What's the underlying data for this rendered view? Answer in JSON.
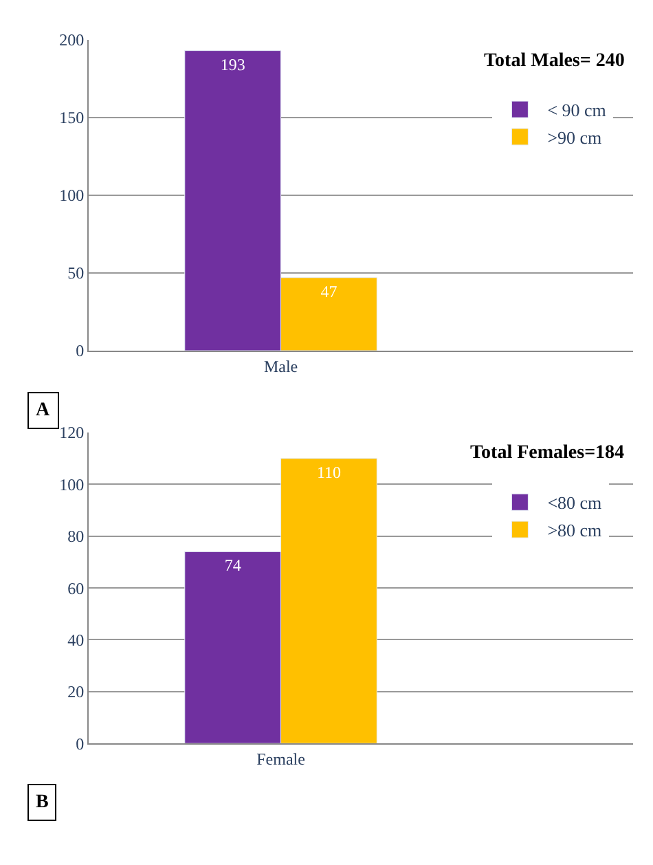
{
  "chart_data": [
    {
      "type": "bar",
      "title": "Total Males= 240",
      "categories": [
        "Male"
      ],
      "series": [
        {
          "name": "< 90 cm",
          "color": "#7030a0",
          "values": [
            193
          ]
        },
        {
          "name": ">90 cm",
          "color": "#ffc000",
          "values": [
            47
          ]
        }
      ],
      "ylim": [
        0,
        200
      ],
      "yticks": [
        0,
        50,
        100,
        150,
        200
      ],
      "grid": "y",
      "legend": "right",
      "data_labels": true,
      "annotations": [
        "A"
      ]
    },
    {
      "type": "bar",
      "title": "Total Females=184",
      "categories": [
        "Female"
      ],
      "series": [
        {
          "name": "<80 cm",
          "color": "#7030a0",
          "values": [
            74
          ]
        },
        {
          "name": ">80 cm",
          "color": "#ffc000",
          "values": [
            110
          ]
        }
      ],
      "ylim": [
        0,
        120
      ],
      "yticks": [
        0,
        20,
        40,
        60,
        80,
        100,
        120
      ],
      "grid": "y",
      "legend": "right",
      "data_labels": true,
      "annotations": [
        "B"
      ]
    }
  ]
}
